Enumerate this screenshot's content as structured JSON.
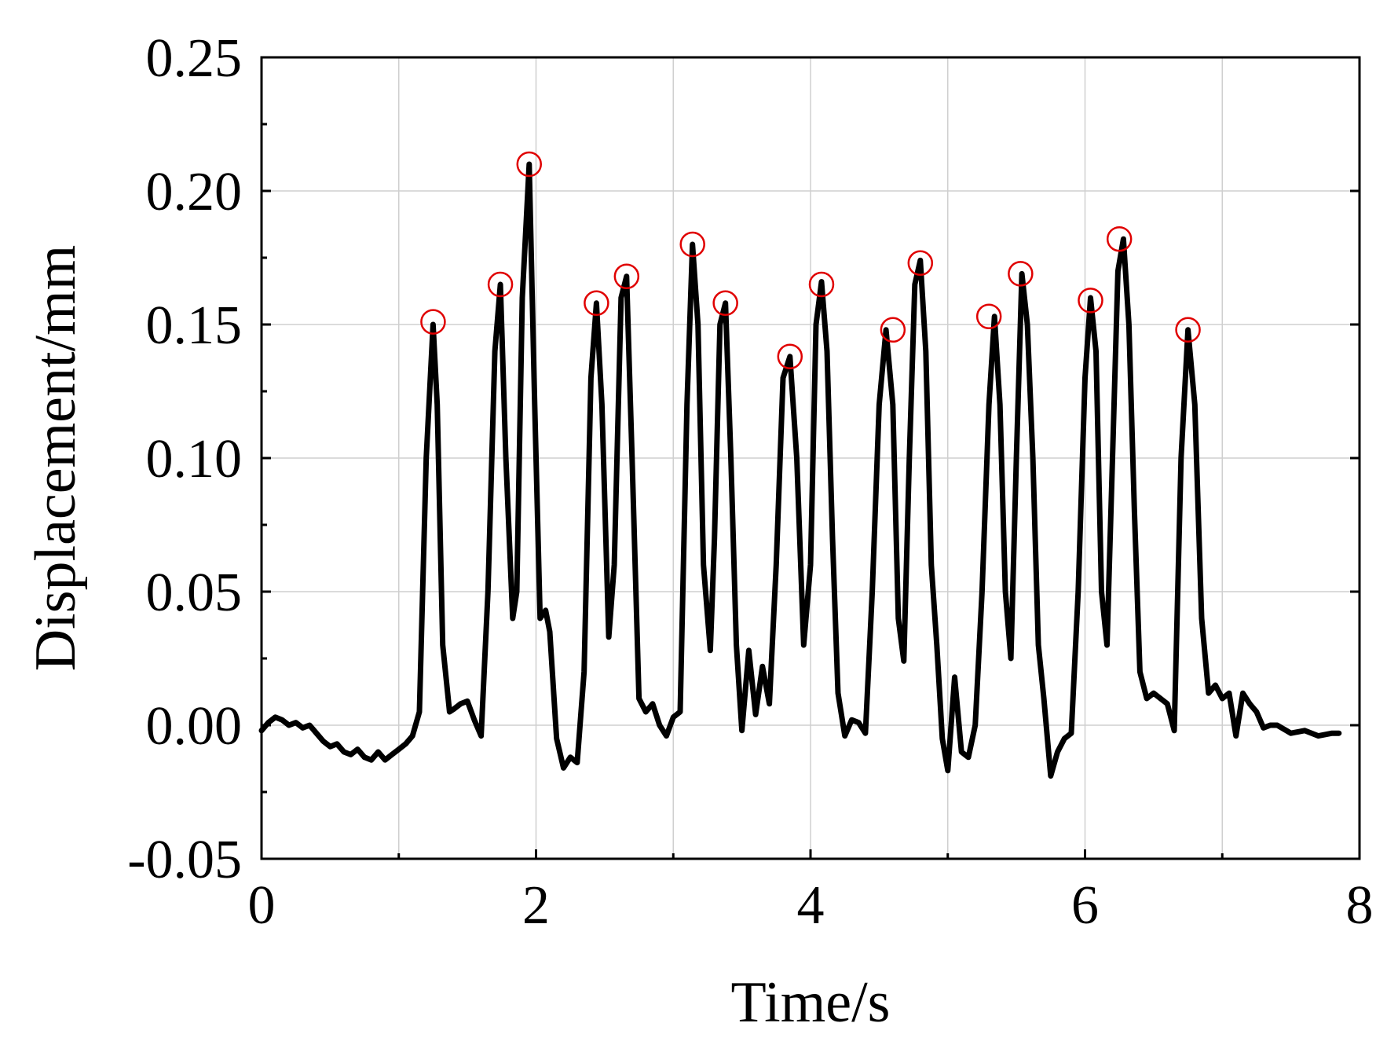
{
  "chart_data": {
    "type": "line",
    "title": "",
    "xlabel": "Time/s",
    "ylabel": "Displacement/mm",
    "xlim": [
      0,
      8
    ],
    "ylim": [
      -0.05,
      0.25
    ],
    "xticks": [
      0,
      2,
      4,
      6,
      8
    ],
    "xtick_labels": [
      "0",
      "2",
      "4",
      "6",
      "8"
    ],
    "yticks": [
      -0.05,
      0.0,
      0.05,
      0.1,
      0.15,
      0.2,
      0.25
    ],
    "ytick_labels": [
      "-0.05",
      "0.00",
      "0.05",
      "0.10",
      "0.15",
      "0.20",
      "0.25"
    ],
    "grid": true,
    "line_color": "#000000",
    "marker_color": "#e00000",
    "series": [
      {
        "x": [
          0.0,
          0.05,
          0.1,
          0.15,
          0.2,
          0.25,
          0.3,
          0.35,
          0.4,
          0.45,
          0.5,
          0.55,
          0.6,
          0.65,
          0.7,
          0.75,
          0.8,
          0.85,
          0.9,
          0.95,
          1.0,
          1.05,
          1.1,
          1.15,
          1.2,
          1.25,
          1.28,
          1.32,
          1.37,
          1.4,
          1.45,
          1.5,
          1.55,
          1.6,
          1.65,
          1.7,
          1.74,
          1.78,
          1.83,
          1.86,
          1.9,
          1.95,
          1.99,
          2.03,
          2.07,
          2.1,
          2.15,
          2.2,
          2.25,
          2.3,
          2.35,
          2.4,
          2.44,
          2.48,
          2.53,
          2.57,
          2.62,
          2.66,
          2.7,
          2.75,
          2.8,
          2.85,
          2.9,
          2.95,
          3.0,
          3.05,
          3.1,
          3.14,
          3.18,
          3.22,
          3.27,
          3.3,
          3.34,
          3.38,
          3.42,
          3.46,
          3.5,
          3.55,
          3.6,
          3.65,
          3.7,
          3.75,
          3.8,
          3.85,
          3.9,
          3.95,
          4.0,
          4.04,
          4.08,
          4.12,
          4.16,
          4.2,
          4.25,
          4.3,
          4.35,
          4.4,
          4.45,
          4.5,
          4.55,
          4.6,
          4.64,
          4.68,
          4.72,
          4.76,
          4.8,
          4.84,
          4.88,
          4.92,
          4.96,
          5.0,
          5.05,
          5.1,
          5.15,
          5.2,
          5.25,
          5.3,
          5.34,
          5.38,
          5.42,
          5.46,
          5.5,
          5.54,
          5.58,
          5.62,
          5.66,
          5.7,
          5.75,
          5.8,
          5.85,
          5.9,
          5.95,
          6.0,
          6.04,
          6.08,
          6.12,
          6.16,
          6.2,
          6.24,
          6.28,
          6.32,
          6.36,
          6.4,
          6.45,
          6.5,
          6.55,
          6.6,
          6.65,
          6.7,
          6.75,
          6.8,
          6.85,
          6.9,
          6.95,
          7.0,
          7.05,
          7.1,
          7.15,
          7.2,
          7.25,
          7.3,
          7.35,
          7.4,
          7.5,
          7.6,
          7.7,
          7.8,
          7.85
        ],
        "y": [
          -0.002,
          0.001,
          0.003,
          0.002,
          0.0,
          0.001,
          -0.001,
          0.0,
          -0.003,
          -0.006,
          -0.008,
          -0.007,
          -0.01,
          -0.011,
          -0.009,
          -0.012,
          -0.013,
          -0.01,
          -0.013,
          -0.011,
          -0.009,
          -0.007,
          -0.004,
          0.005,
          0.1,
          0.15,
          0.12,
          0.03,
          0.005,
          0.006,
          0.008,
          0.009,
          0.002,
          -0.004,
          0.05,
          0.14,
          0.165,
          0.1,
          0.04,
          0.05,
          0.16,
          0.21,
          0.12,
          0.04,
          0.043,
          0.035,
          -0.005,
          -0.016,
          -0.012,
          -0.014,
          0.02,
          0.13,
          0.158,
          0.12,
          0.033,
          0.06,
          0.16,
          0.168,
          0.1,
          0.01,
          0.005,
          0.008,
          0.0,
          -0.004,
          0.003,
          0.005,
          0.12,
          0.18,
          0.15,
          0.06,
          0.028,
          0.07,
          0.15,
          0.158,
          0.1,
          0.03,
          -0.002,
          0.028,
          0.004,
          0.022,
          0.008,
          0.06,
          0.13,
          0.138,
          0.1,
          0.03,
          0.06,
          0.15,
          0.166,
          0.14,
          0.07,
          0.012,
          -0.004,
          0.002,
          0.001,
          -0.003,
          0.05,
          0.12,
          0.148,
          0.12,
          0.04,
          0.024,
          0.1,
          0.165,
          0.174,
          0.14,
          0.06,
          0.03,
          -0.005,
          -0.017,
          0.018,
          -0.01,
          -0.012,
          0.0,
          0.05,
          0.12,
          0.153,
          0.12,
          0.05,
          0.025,
          0.1,
          0.169,
          0.15,
          0.1,
          0.03,
          0.01,
          -0.019,
          -0.01,
          -0.005,
          -0.003,
          0.05,
          0.13,
          0.16,
          0.14,
          0.05,
          0.03,
          0.1,
          0.17,
          0.182,
          0.15,
          0.08,
          0.02,
          0.01,
          0.012,
          0.01,
          0.008,
          -0.002,
          0.1,
          0.148,
          0.12,
          0.04,
          0.012,
          0.015,
          0.01,
          0.012,
          -0.004,
          0.012,
          0.008,
          0.005,
          -0.001,
          0.0,
          0.0,
          -0.003,
          -0.002,
          -0.004,
          -0.003,
          -0.003
        ]
      }
    ],
    "peaks": [
      {
        "x": 1.25,
        "y": 0.151
      },
      {
        "x": 1.74,
        "y": 0.165
      },
      {
        "x": 1.95,
        "y": 0.21
      },
      {
        "x": 2.44,
        "y": 0.158
      },
      {
        "x": 2.66,
        "y": 0.168
      },
      {
        "x": 3.14,
        "y": 0.18
      },
      {
        "x": 3.38,
        "y": 0.158
      },
      {
        "x": 3.85,
        "y": 0.138
      },
      {
        "x": 4.08,
        "y": 0.165
      },
      {
        "x": 4.6,
        "y": 0.148
      },
      {
        "x": 4.8,
        "y": 0.173
      },
      {
        "x": 5.3,
        "y": 0.153
      },
      {
        "x": 5.53,
        "y": 0.169
      },
      {
        "x": 6.04,
        "y": 0.159
      },
      {
        "x": 6.25,
        "y": 0.182
      },
      {
        "x": 6.75,
        "y": 0.148
      }
    ]
  }
}
